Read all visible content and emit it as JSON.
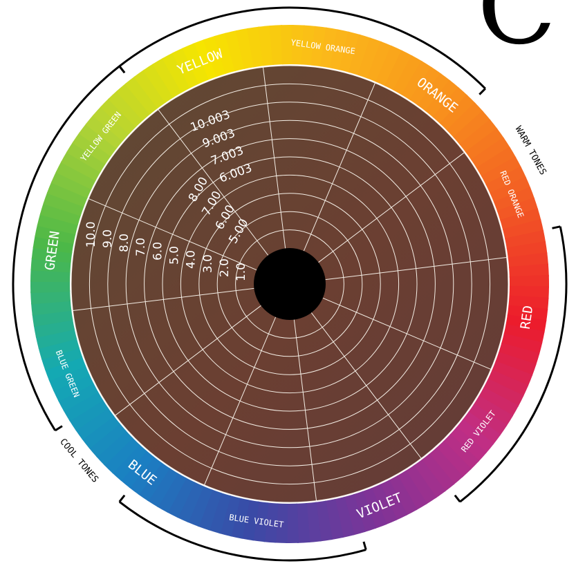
{
  "corner_letter": "C",
  "hues": [
    {
      "label": "YELLOW",
      "color": "#f6e500"
    },
    {
      "label": "YELLOW ORANGE",
      "color": "#fbb81a"
    },
    {
      "label": "ORANGE",
      "color": "#f8931c"
    },
    {
      "label": "RED ORANGE",
      "color": "#f25d24"
    },
    {
      "label": "RED",
      "color": "#ec1c2c"
    },
    {
      "label": "RED VIOLET",
      "color": "#c02e84"
    },
    {
      "label": "VIOLET",
      "color": "#7f3397"
    },
    {
      "label": "BLUE VIOLET",
      "color": "#3a4aa6"
    },
    {
      "label": "BLUE",
      "color": "#1b7ec2"
    },
    {
      "label": "BLUE GREEN",
      "color": "#14a9b3"
    },
    {
      "label": "GREEN",
      "color": "#4cb848"
    },
    {
      "label": "YELLOW GREEN",
      "color": "#b3d335"
    }
  ],
  "tone_groups": [
    {
      "label": "WARM TONES"
    },
    {
      "label": "COOL TONES"
    }
  ],
  "levels_horizontal": [
    "10.0",
    "9.0",
    "8.0",
    "7.0",
    "6.0",
    "5.0",
    "4.0",
    "3.0",
    "2.0",
    "1.0"
  ],
  "levels_diagonal": [
    "8.00",
    "7.00",
    "6.00",
    "5.00"
  ],
  "levels_diagonal_2": [
    "10.003",
    "9.003",
    "7.003",
    "6.003"
  ],
  "colors": {
    "inner_fill_top": "#5e4a34",
    "inner_fill_right": "#6b3f32",
    "inner_fill_bottom": "#623c38",
    "grid_line": "#f5efe6",
    "center_hole": "#000000"
  }
}
